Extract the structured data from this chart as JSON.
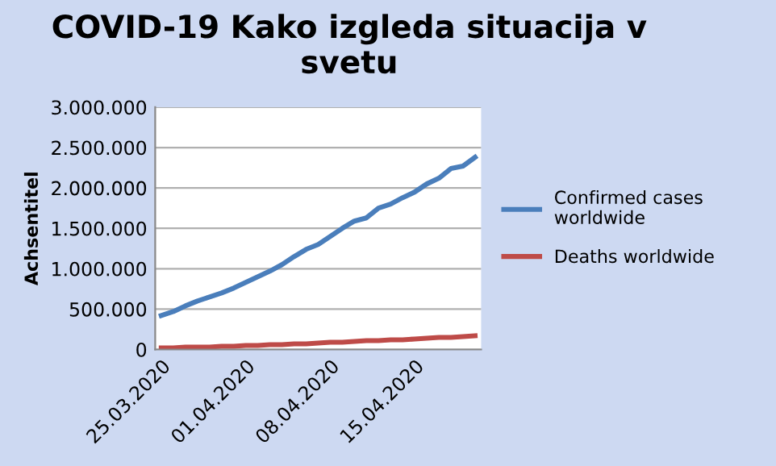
{
  "chart_data": {
    "type": "line",
    "title": "COVID-19 Kako izgleda situacija v svetu",
    "ylabel": "Achsentitel",
    "categories": [
      "25.03.2020",
      null,
      null,
      null,
      null,
      null,
      null,
      "01.04.2020",
      null,
      null,
      null,
      null,
      null,
      null,
      "08.04.2020",
      null,
      null,
      null,
      null,
      null,
      null,
      "15.04.2020",
      null,
      null,
      null,
      null,
      null
    ],
    "series": [
      {
        "name": "Confirmed cases worldwide",
        "color": "#4a7ebb",
        "values": [
          420000,
          470000,
          540000,
          600000,
          650000,
          700000,
          760000,
          830000,
          900000,
          970000,
          1050000,
          1150000,
          1240000,
          1300000,
          1400000,
          1500000,
          1590000,
          1630000,
          1750000,
          1800000,
          1880000,
          1950000,
          2050000,
          2120000,
          2240000,
          2270000,
          2380000
        ]
      },
      {
        "name": "Deaths worldwide",
        "color": "#be4b48",
        "values": [
          20000,
          20000,
          30000,
          30000,
          30000,
          40000,
          40000,
          50000,
          50000,
          60000,
          60000,
          70000,
          70000,
          80000,
          90000,
          90000,
          100000,
          110000,
          110000,
          120000,
          120000,
          130000,
          140000,
          150000,
          150000,
          160000,
          170000
        ]
      }
    ],
    "ylim": [
      0,
      3000000
    ],
    "yticks": [
      {
        "value": 0,
        "label": "0"
      },
      {
        "value": 500000,
        "label": "500.000"
      },
      {
        "value": 1000000,
        "label": "1.000.000"
      },
      {
        "value": 1500000,
        "label": "1.500.000"
      },
      {
        "value": 2000000,
        "label": "2.000.000"
      },
      {
        "value": 2500000,
        "label": "2.500.000"
      },
      {
        "value": 3000000,
        "label": "3.000.000"
      }
    ],
    "grid": "y",
    "legend": "right",
    "marker": "none",
    "line_style": "solid"
  }
}
